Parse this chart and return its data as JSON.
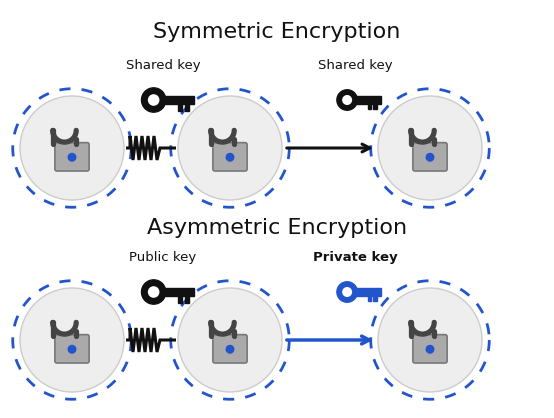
{
  "title_sym": "Symmetric Encryption",
  "title_asym": "Asymmetric Encryption",
  "sym_label1": "Shared key",
  "sym_label2": "Shared key",
  "asym_label1": "Public key",
  "asym_label2": "Private key",
  "bg_color": "#ffffff",
  "circle_fill": "#eeeeee",
  "circle_edge": "#2255cc",
  "arrow_black": "#111111",
  "arrow_blue": "#2255cc",
  "key_black": "#111111",
  "key_blue": "#2255cc",
  "title_fontsize": 16,
  "label_fontsize": 9.5,
  "lock_color": "#aaaaaa",
  "lock_edge": "#777777",
  "dot_color": "#2255cc"
}
